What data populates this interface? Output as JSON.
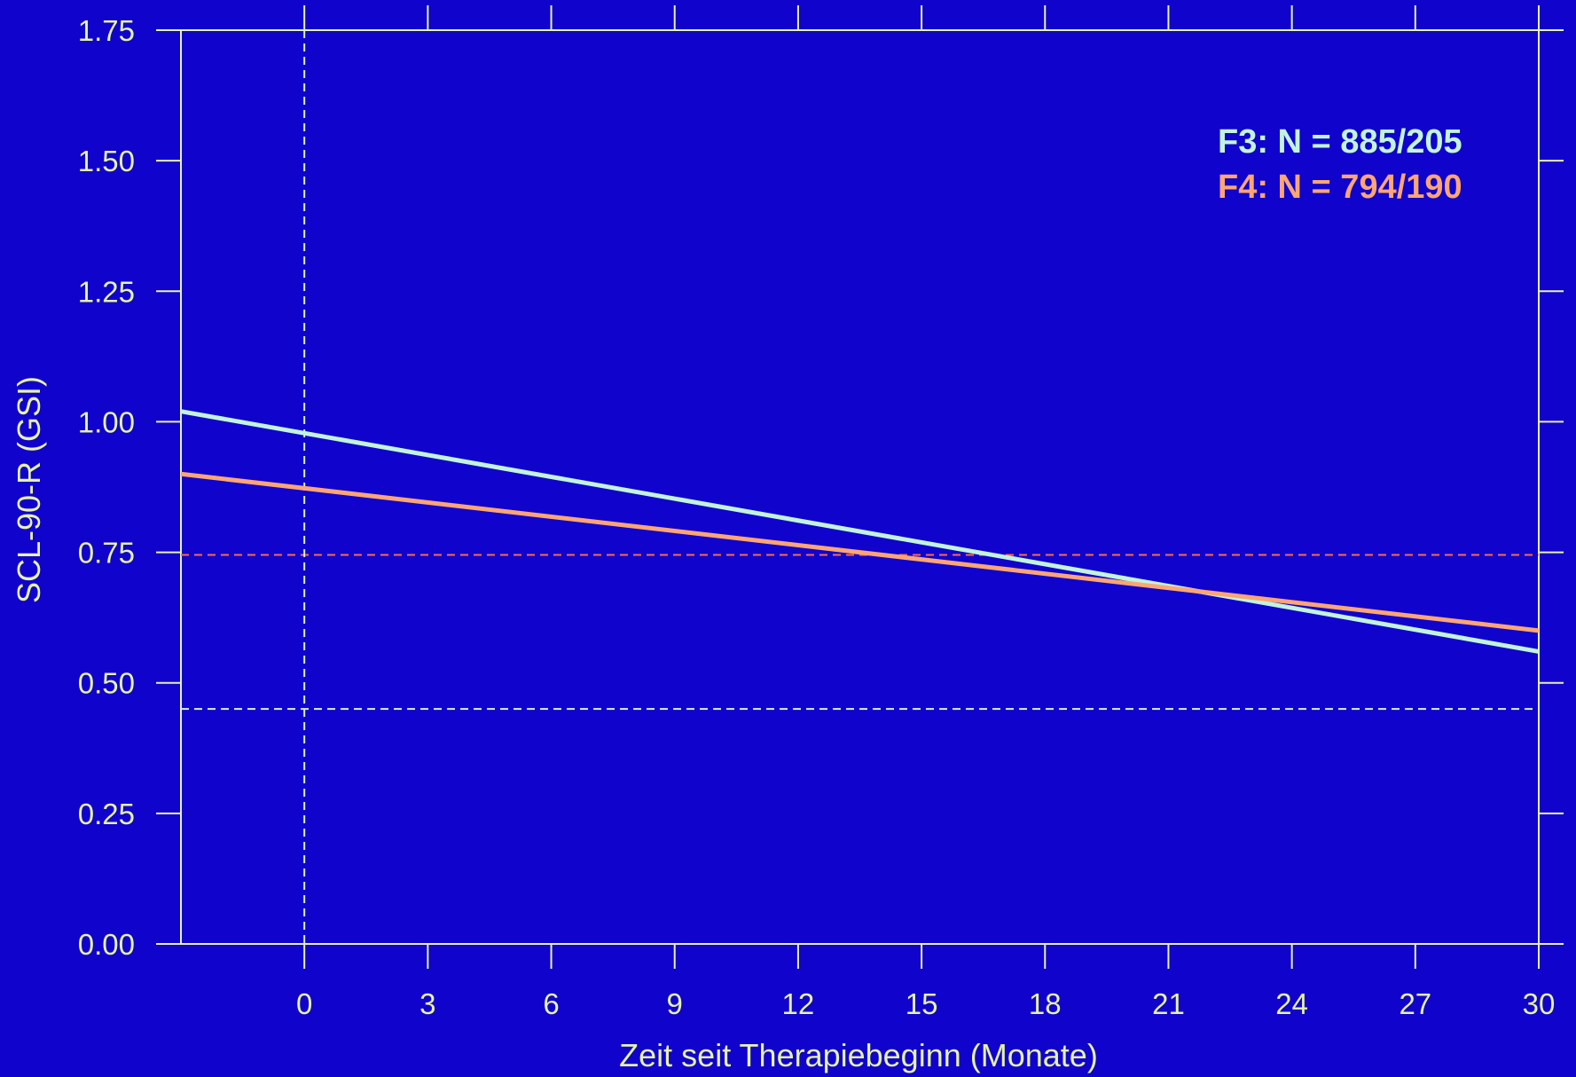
{
  "colors": {
    "background": "#1003CC",
    "axis": "#E6F2A8",
    "f3": "#C2F4DC",
    "f4": "#FDA574",
    "ref_red": "#FF6A4A",
    "ref_light": "#D8F0CC"
  },
  "chart_data": {
    "type": "line",
    "xlabel": "Zeit seit Therapiebeginn (Monate)",
    "ylabel": "SCL-90-R (GSI)",
    "xlim": [
      -3,
      30
    ],
    "ylim": [
      0,
      1.75
    ],
    "x_ticks": [
      0,
      3,
      6,
      9,
      12,
      15,
      18,
      21,
      24,
      27,
      30
    ],
    "x_tick_labels": [
      "0",
      "3",
      "6",
      "9",
      "12",
      "15",
      "18",
      "21",
      "24",
      "27",
      "30"
    ],
    "y_ticks": [
      0,
      0.25,
      0.5,
      0.75,
      1.0,
      1.25,
      1.5,
      1.75
    ],
    "y_tick_labels": [
      "0.00",
      "0.25",
      "0.50",
      "0.75",
      "1.00",
      "1.25",
      "1.50",
      "1.75"
    ],
    "grid": false,
    "legend_position": "top-right",
    "series": [
      {
        "name": "F3: N = 885/205",
        "x": [
          -3,
          30
        ],
        "y": [
          1.02,
          0.56
        ],
        "color": "#C2F4DC"
      },
      {
        "name": "F4: N = 794/190",
        "x": [
          -3,
          30
        ],
        "y": [
          0.9,
          0.6
        ],
        "color": "#FDA574"
      }
    ],
    "reference_lines": [
      {
        "orientation": "horizontal",
        "value": 0.745,
        "style": "dashed",
        "color": "#FF6A4A"
      },
      {
        "orientation": "horizontal",
        "value": 0.45,
        "style": "dashed",
        "color": "#D8F0CC"
      },
      {
        "orientation": "vertical",
        "value": 0,
        "style": "dashed",
        "color": "#D8F0CC"
      }
    ]
  }
}
